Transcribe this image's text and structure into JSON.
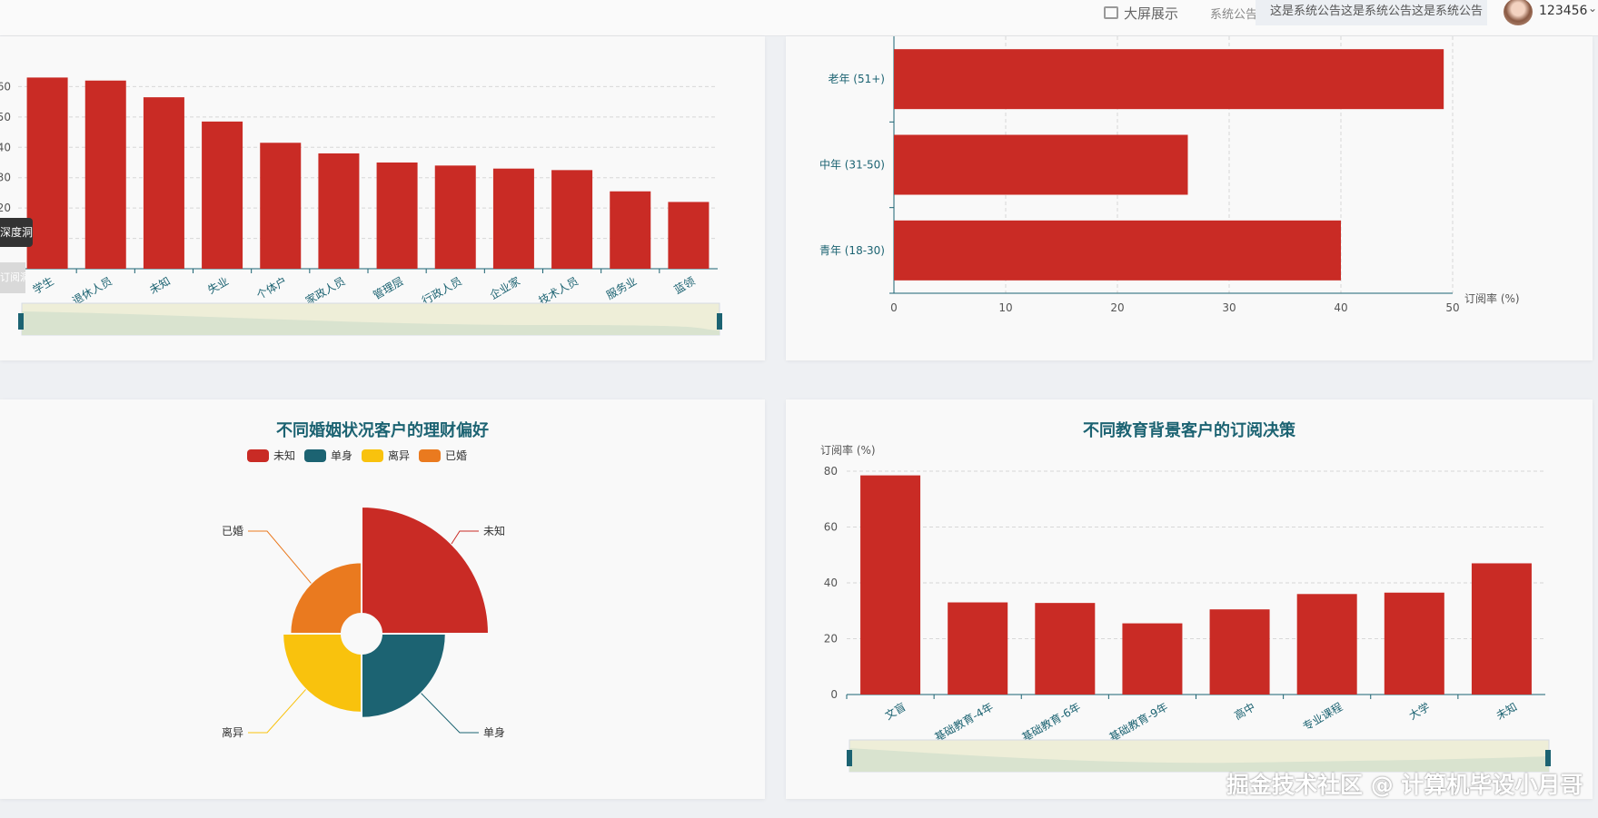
{
  "topbar": {
    "big_screen": "大屏展示",
    "notice_label": "系统公告",
    "notice_text": "这是系统公告这是系统公告这是系统公告",
    "username": "123456"
  },
  "tooltips": {
    "left_tag": "深度洞察",
    "left_tag2": "订阅洞察"
  },
  "watermark": "掘金技术社区 @ 计算机毕设小月哥",
  "colors": {
    "bar": "#c92b25",
    "teal": "#1c6372",
    "yellow": "#f9c20d",
    "orange": "#ea7a1f"
  },
  "chart_data": [
    {
      "id": "occupation",
      "type": "bar",
      "title": "",
      "categories": [
        "学生",
        "退休人员",
        "未知",
        "失业",
        "个体户",
        "家政人员",
        "管理层",
        "行政人员",
        "企业家",
        "技术人员",
        "服务业",
        "蓝领"
      ],
      "values": [
        63,
        62,
        56.5,
        48.5,
        41.5,
        38,
        35,
        34,
        33,
        32.5,
        25.5,
        22
      ],
      "ylim": [
        0,
        70
      ],
      "yticks": [
        "0",
        "10",
        "20",
        "30",
        "40",
        "50",
        "60"
      ],
      "grid": true,
      "datazoom": true
    },
    {
      "id": "age",
      "type": "bar",
      "orientation": "horizontal",
      "title": "",
      "categories": [
        "青年 (18-30)",
        "中年 (31-50)",
        "老年 (51+)"
      ],
      "values": [
        40,
        26.3,
        49.2
      ],
      "xlabel": "订阅率 (%)",
      "xlim": [
        0,
        50
      ],
      "xticks": [
        "0",
        "10",
        "20",
        "30",
        "40",
        "50"
      ],
      "grid": true
    },
    {
      "id": "marital",
      "type": "pie",
      "subtype": "rose",
      "title": "不同婚姻状况客户的理财偏好",
      "legend_position": "top",
      "slices": [
        {
          "name": "未知",
          "value": 1.0,
          "color": "#c92b25"
        },
        {
          "name": "单身",
          "value": 0.6,
          "color": "#1c6372"
        },
        {
          "name": "离异",
          "value": 0.55,
          "color": "#f9c20d"
        },
        {
          "name": "已婚",
          "value": 0.48,
          "color": "#ea7a1f"
        }
      ]
    },
    {
      "id": "education",
      "type": "bar",
      "title": "不同教育背景客户的订阅决策",
      "ylabel": "订阅率 (%)",
      "categories": [
        "文盲",
        "基础教育-4年",
        "基础教育-6年",
        "基础教育-9年",
        "高中",
        "专业课程",
        "大学",
        "未知"
      ],
      "values": [
        78.5,
        33,
        32.8,
        25.5,
        30.5,
        36,
        36.5,
        47
      ],
      "ylim": [
        0,
        80
      ],
      "yticks": [
        "0",
        "20",
        "40",
        "60",
        "80"
      ],
      "grid": true,
      "datazoom": true
    }
  ]
}
